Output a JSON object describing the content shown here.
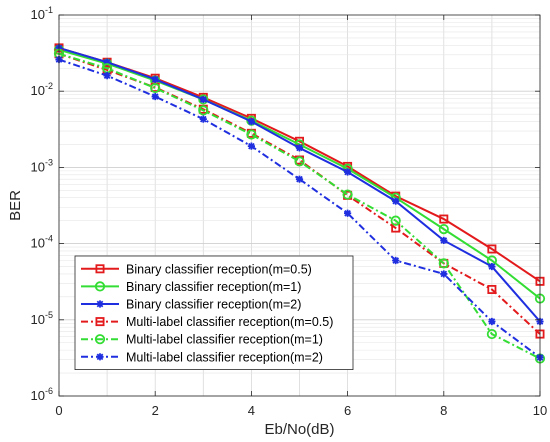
{
  "chart_data": {
    "type": "line",
    "xlabel": "Eb/No(dB)",
    "ylabel": "BER",
    "xlim": [
      0,
      10
    ],
    "ylim": [
      1e-06,
      0.1
    ],
    "yscale": "log",
    "grid": true,
    "legend_position": "bottom-left",
    "x": [
      0,
      1,
      2,
      3,
      4,
      5,
      6,
      7,
      8,
      9,
      10
    ],
    "x_ticks": [
      "0",
      "2",
      "4",
      "6",
      "8",
      "10"
    ],
    "y_ticks": [
      {
        "base": "10",
        "exp": "-6"
      },
      {
        "base": "10",
        "exp": "-5"
      },
      {
        "base": "10",
        "exp": "-4"
      },
      {
        "base": "10",
        "exp": "-3"
      },
      {
        "base": "10",
        "exp": "-2"
      },
      {
        "base": "10",
        "exp": "-1"
      }
    ],
    "series": [
      {
        "name": "Binary classifier reception(m=0.5)",
        "color": "#e31a1c",
        "linestyle": "solid",
        "marker": "square",
        "values": [
          0.037,
          0.024,
          0.0148,
          0.0083,
          0.0044,
          0.0022,
          0.00103,
          0.00042,
          0.00021,
          8.5e-05,
          3.2e-05
        ]
      },
      {
        "name": "Binary classifier reception(m=1)",
        "color": "#33dd33",
        "linestyle": "solid",
        "marker": "circle",
        "values": [
          0.035,
          0.023,
          0.0138,
          0.0078,
          0.0041,
          0.002,
          0.00096,
          0.0004,
          0.000155,
          6e-05,
          1.9e-05
        ]
      },
      {
        "name": "Binary classifier reception(m=2)",
        "color": "#1f2fe0",
        "linestyle": "solid",
        "marker": "star",
        "values": [
          0.037,
          0.024,
          0.0143,
          0.0078,
          0.004,
          0.0018,
          0.00087,
          0.00036,
          0.00011,
          5e-05,
          9.5e-06
        ]
      },
      {
        "name": "Multi-label classifier reception(m=0.5)",
        "color": "#e31a1c",
        "linestyle": "dashdot",
        "marker": "square",
        "values": [
          0.031,
          0.019,
          0.0112,
          0.0058,
          0.0028,
          0.00125,
          0.00043,
          0.00016,
          5.5e-05,
          2.5e-05,
          6.5e-06
        ]
      },
      {
        "name": "Multi-label classifier reception(m=1)",
        "color": "#33dd33",
        "linestyle": "dashdot",
        "marker": "circle",
        "values": [
          0.031,
          0.02,
          0.011,
          0.0056,
          0.0027,
          0.0012,
          0.00044,
          0.0002,
          5.5e-05,
          6.5e-06,
          3.1e-06
        ]
      },
      {
        "name": "Multi-label classifier reception(m=2)",
        "color": "#1f2fe0",
        "linestyle": "dashdot",
        "marker": "star",
        "values": [
          0.026,
          0.016,
          0.0085,
          0.0043,
          0.0019,
          0.0007,
          0.00025,
          6e-05,
          4e-05,
          9.5e-06,
          3.2e-06
        ]
      }
    ]
  }
}
